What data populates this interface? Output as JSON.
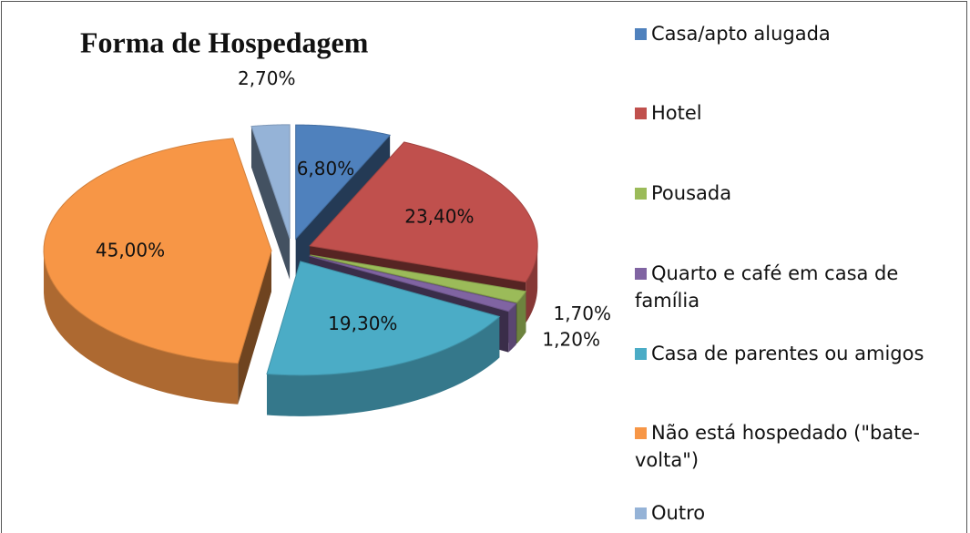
{
  "chart_data": {
    "type": "pie",
    "title": "Forma de Hospedagem",
    "categories": [
      "Casa/apto alugada",
      "Hotel",
      "Pousada",
      "Quarto e café em casa de família",
      "Casa de parentes ou amigos",
      "Não está hospedado (\"bate-volta\")",
      "Outro"
    ],
    "values": [
      6.8,
      23.4,
      1.7,
      1.2,
      19.3,
      45.0,
      2.7
    ],
    "value_labels": [
      "6,80%",
      "23,40%",
      "1,70%",
      "1,20%",
      "19,30%",
      "45,00%",
      "2,70%"
    ],
    "colors": [
      "#4f81bd",
      "#c0504d",
      "#9bbb59",
      "#8064a2",
      "#4bacc6",
      "#f79646",
      "#95b3d7"
    ],
    "legend": "right"
  }
}
